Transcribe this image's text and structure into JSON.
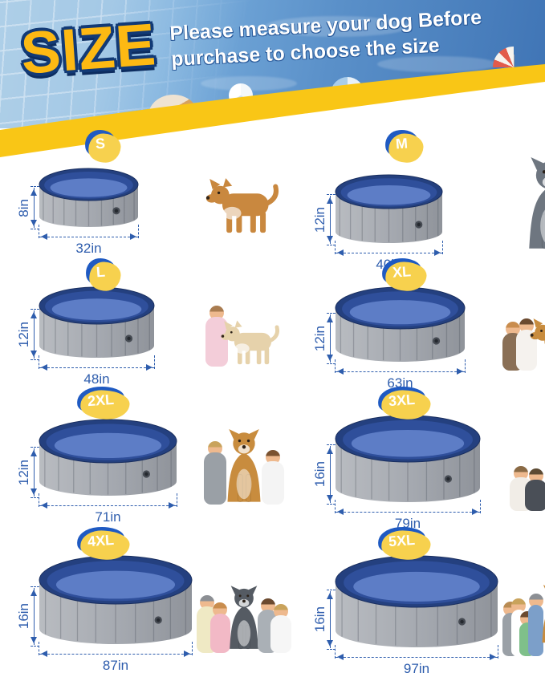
{
  "header": {
    "title": "SIZE",
    "tagline_line1": "Please measure your dog Before",
    "tagline_line2": "purchase to choose the size"
  },
  "palette": {
    "band_yellow": "#f9c616",
    "title_yellow": "#fdb913",
    "title_outline": "#123a76",
    "dimension_blue": "#2e5dad",
    "badge_blue": "#1f5ac2",
    "badge_shadow_yellow": "#f7d14e",
    "pool_wall_gray": "#a4a8af",
    "pool_rim_navy": "#24407f",
    "pool_inner_blue": "#2f4f9b",
    "pool_floor_blue": "#5d7dc6"
  },
  "sizes": [
    {
      "label": "S",
      "height": "8in",
      "diameter": "32in",
      "photo": "corgi dog",
      "figures": [
        {
          "kind": "dog",
          "color": "#c9883f",
          "scale": 1.0
        }
      ]
    },
    {
      "label": "M",
      "height": "12in",
      "diameter": "40in",
      "photo": "husky dog sitting",
      "figures": [
        {
          "kind": "dogsit",
          "color": "#6e7680",
          "scale": 1.25
        }
      ]
    },
    {
      "label": "L",
      "height": "12in",
      "diameter": "48in",
      "photo": "girl hugging white puppy",
      "figures": [
        {
          "kind": "person",
          "shirt": "#f3cdd9",
          "hair": "#a97c50",
          "scale": 1.05
        },
        {
          "kind": "dog",
          "color": "#e6d2ab",
          "scale": 0.8
        }
      ]
    },
    {
      "label": "XL",
      "height": "12in",
      "diameter": "63in",
      "photo": "toddler, girl and golden retriever",
      "figures": [
        {
          "kind": "person",
          "shirt": "#8a6f55",
          "hair": "#c98d4e",
          "scale": 0.85
        },
        {
          "kind": "person",
          "shirt": "#f5f2ee",
          "hair": "#6b4a2f",
          "scale": 0.9
        },
        {
          "kind": "dog",
          "color": "#c88c3e",
          "scale": 0.95
        }
      ]
    },
    {
      "label": "2XL",
      "height": "12in",
      "diameter": "71in",
      "photo": "woman and boy with golden retriever",
      "figures": [
        {
          "kind": "person",
          "shirt": "#9aa0a6",
          "hair": "#c9a35c",
          "scale": 1.1
        },
        {
          "kind": "dogsit",
          "color": "#c88c3e",
          "scale": 1.0
        },
        {
          "kind": "person",
          "shirt": "#f4f4f4",
          "hair": "#7a5230",
          "scale": 0.95
        }
      ]
    },
    {
      "label": "3XL",
      "height": "16in",
      "diameter": "79in",
      "photo": "family lying down with golden puppy",
      "figures": [
        {
          "kind": "person",
          "shirt": "#f1ede7",
          "hair": "#8a6a45",
          "scale": 0.78
        },
        {
          "kind": "person",
          "shirt": "#4a4f57",
          "hair": "#5d4a33",
          "scale": 0.74
        },
        {
          "kind": "dogsit",
          "color": "#d9b075",
          "scale": 0.7
        },
        {
          "kind": "person",
          "shirt": "#cfc4ae",
          "hair": "#8c8f94",
          "scale": 0.84
        }
      ]
    },
    {
      "label": "4XL",
      "height": "16in",
      "diameter": "87in",
      "photo": "family of four with dog",
      "figures": [
        {
          "kind": "person",
          "shirt": "#efe9c4",
          "hair": "#8c8f94",
          "scale": 1.0
        },
        {
          "kind": "person",
          "shirt": "#f2b9c6",
          "hair": "#c98d4e",
          "scale": 0.88
        },
        {
          "kind": "dogsit",
          "color": "#555b63",
          "scale": 0.92
        },
        {
          "kind": "person",
          "shirt": "#aab0b6",
          "hair": "#6b4a2f",
          "scale": 0.95
        },
        {
          "kind": "person",
          "shirt": "#f6f6f6",
          "hair": "#c9a35c",
          "scale": 0.85
        }
      ]
    },
    {
      "label": "5XL",
      "height": "16in",
      "diameter": "97in",
      "photo": "family with golden retriever and puppy",
      "figures": [
        {
          "kind": "person",
          "shirt": "#9aa0a6",
          "hair": "#b98c54",
          "scale": 0.95
        },
        {
          "kind": "person",
          "shirt": "#ffffff",
          "hair": "#c9a35c",
          "scale": 1.0
        },
        {
          "kind": "person",
          "shirt": "#7fc08a",
          "hair": "#6b4a2f",
          "scale": 0.78
        },
        {
          "kind": "person",
          "shirt": "#7c9fc9",
          "hair": "#8c8f94",
          "scale": 1.08
        },
        {
          "kind": "dogsit",
          "color": "#c88c3e",
          "scale": 1.1
        },
        {
          "kind": "dog",
          "color": "#d9973f",
          "scale": 0.55
        }
      ]
    }
  ]
}
